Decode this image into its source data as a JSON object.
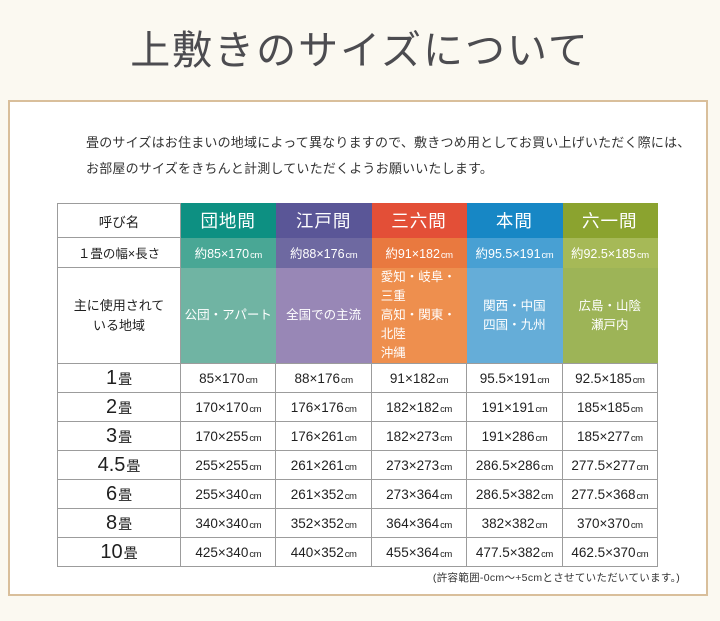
{
  "page": {
    "title": "上敷きのサイズについて",
    "intro_line1": "畳のサイズはお住まいの地域によって異なりますので、敷きつめ用としてお買い上げいただく際には、",
    "intro_line2": "お部屋のサイズをきちんと計測していただくようお願いいたします。",
    "footnote": "(許容範囲-0cm～+5cmとさせていただいています。)"
  },
  "table": {
    "corner_label": "呼び名",
    "width_row_label": "１畳の幅×長さ",
    "region_row_label": "主に使用されて\nいる地域",
    "unit": "cm",
    "columns": [
      {
        "name": "団地間",
        "approx_size": "約85×170",
        "regions": "公団・アパート",
        "colors": {
          "header": "#0d9082",
          "size": "#49a795",
          "region": "#70b4a3"
        }
      },
      {
        "name": "江戸間",
        "approx_size": "約88×176",
        "regions": "全国での主流",
        "colors": {
          "header": "#5a5697",
          "size": "#6e69a1",
          "region": "#9887b6"
        }
      },
      {
        "name": "三六間",
        "approx_size": "約91×182",
        "regions": "愛知・岐阜・三重\n高知・関東・北陸\n沖縄",
        "colors": {
          "header": "#e34f37",
          "size": "#e9793f",
          "region": "#ee8f4e"
        }
      },
      {
        "name": "本間",
        "approx_size": "約95.5×191",
        "regions": "関西・中国\n四国・九州",
        "colors": {
          "header": "#1787c5",
          "size": "#48a0d3",
          "region": "#65add8"
        }
      },
      {
        "name": "六一間",
        "approx_size": "約92.5×185",
        "regions": "広島・山陰\n瀬戸内",
        "colors": {
          "header": "#8ba32f",
          "size": "#a6b957",
          "region": "#9db457"
        }
      }
    ],
    "rows": [
      {
        "count": "1",
        "suffix": "畳",
        "values": [
          "85×170",
          "88×176",
          "91×182",
          "95.5×191",
          "92.5×185"
        ]
      },
      {
        "count": "2",
        "suffix": "畳",
        "values": [
          "170×170",
          "176×176",
          "182×182",
          "191×191",
          "185×185"
        ]
      },
      {
        "count": "3",
        "suffix": "畳",
        "values": [
          "170×255",
          "176×261",
          "182×273",
          "191×286",
          "185×277"
        ]
      },
      {
        "count": "4.5",
        "suffix": "畳",
        "values": [
          "255×255",
          "261×261",
          "273×273",
          "286.5×286",
          "277.5×277"
        ]
      },
      {
        "count": "6",
        "suffix": "畳",
        "values": [
          "255×340",
          "261×352",
          "273×364",
          "286.5×382",
          "277.5×368"
        ]
      },
      {
        "count": "8",
        "suffix": "畳",
        "values": [
          "340×340",
          "352×352",
          "364×364",
          "382×382",
          "370×370"
        ]
      },
      {
        "count": "10",
        "suffix": "畳",
        "values": [
          "425×340",
          "440×352",
          "455×364",
          "477.5×382",
          "462.5×370"
        ]
      }
    ]
  }
}
